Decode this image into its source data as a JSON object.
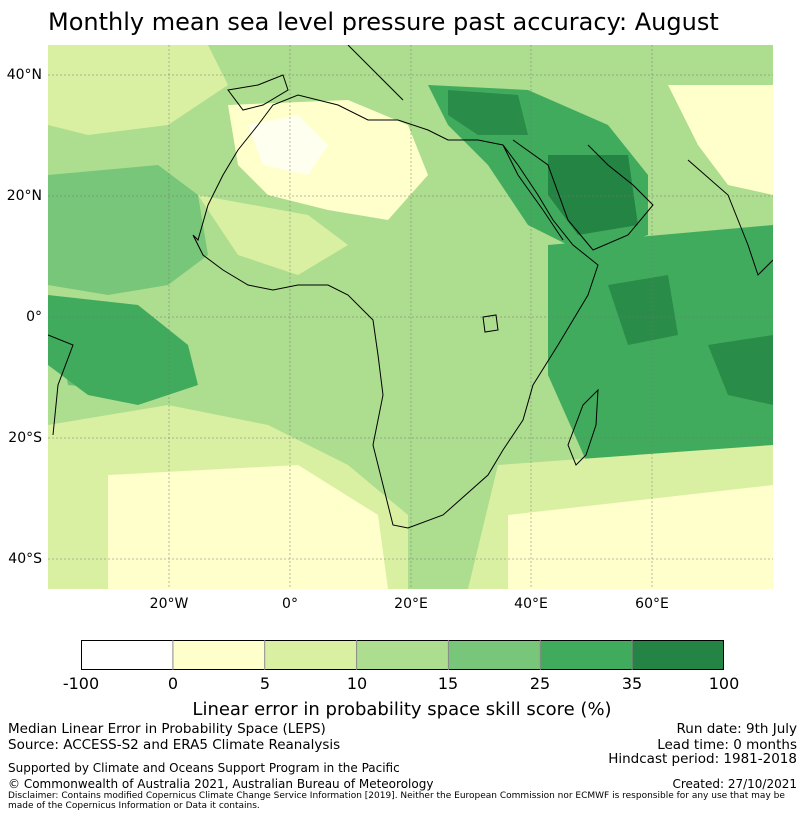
{
  "title": "Monthly mean sea level pressure past accuracy: August",
  "map": {
    "lat_labels": [
      "40°N",
      "20°N",
      "0°",
      "20°S",
      "40°S"
    ],
    "lon_labels": [
      "20°W",
      "0°",
      "20°E",
      "40°E",
      "60°E"
    ],
    "extent": {
      "lon": [
        -40,
        80
      ],
      "lat": [
        -45,
        45
      ]
    }
  },
  "colorbar": {
    "ticks": [
      "-100",
      "0",
      "5",
      "10",
      "15",
      "25",
      "35",
      "100"
    ],
    "colors": [
      "#ffffff",
      "#ffffcc",
      "#d9f0a3",
      "#addd8e",
      "#78c679",
      "#41ab5d",
      "#238443"
    ],
    "title": "Linear error in probability space skill score (%)"
  },
  "footer": {
    "left_line1": "Median Linear Error in Probability Space (LEPS)",
    "left_line2": "Source: ACCESS-S2 and ERA5 Climate Reanalysis",
    "right_line1": "Run date: 9th July",
    "right_line2": "Lead time: 0 months",
    "right_line3": "Hindcast period: 1981-2018",
    "support": "Supported by Climate and Oceans Support Program in the Pacific",
    "copyright": "© Commonwealth of Australia 2021, Australian Bureau of Meteorology",
    "created": "Created: 27/10/2021",
    "disclaimer": "Disclaimer: Contains modified Copernicus Climate Change Service Information [2019]. Neither the European Commission nor ECMWF is responsible for any use that may be made of the Copernicus Information or Data it contains."
  }
}
